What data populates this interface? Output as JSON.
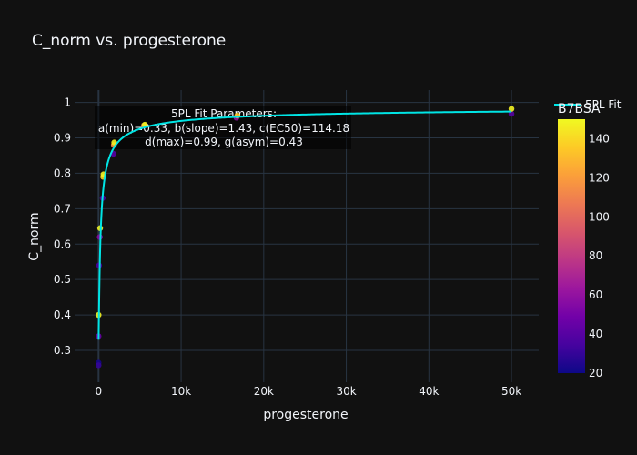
{
  "chart_data": {
    "type": "scatter",
    "title": "C_norm vs. progesterone",
    "xlabel": "progesterone",
    "ylabel": "C_norm",
    "xlim": [
      -2900,
      53300
    ],
    "ylim": [
      0.21,
      1.035
    ],
    "xticks": [
      0,
      10000,
      20000,
      30000,
      40000,
      50000
    ],
    "xtick_labels": [
      "0",
      "10k",
      "20k",
      "30k",
      "40k",
      "50k"
    ],
    "yticks": [
      0.3,
      0.4,
      0.5,
      0.6,
      0.7,
      0.8,
      0.9,
      1
    ],
    "ytick_labels": [
      "0.3",
      "0.4",
      "0.5",
      "0.6",
      "0.7",
      "0.8",
      "0.9",
      "1"
    ],
    "grid": true,
    "points": [
      {
        "x": 0,
        "y": 0.265,
        "c": 22
      },
      {
        "x": 0,
        "y": 0.258,
        "c": 30
      },
      {
        "x": 0,
        "y": 0.34,
        "c": 45
      },
      {
        "x": 0,
        "y": 0.4,
        "c": 148
      },
      {
        "x": 60,
        "y": 0.54,
        "c": 35
      },
      {
        "x": 150,
        "y": 0.62,
        "c": 55
      },
      {
        "x": 190,
        "y": 0.645,
        "c": 148
      },
      {
        "x": 500,
        "y": 0.73,
        "c": 35
      },
      {
        "x": 560,
        "y": 0.79,
        "c": 140
      },
      {
        "x": 600,
        "y": 0.797,
        "c": 148
      },
      {
        "x": 1800,
        "y": 0.855,
        "c": 40
      },
      {
        "x": 1850,
        "y": 0.88,
        "c": 115
      },
      {
        "x": 1900,
        "y": 0.887,
        "c": 148
      },
      {
        "x": 5500,
        "y": 0.935,
        "c": 120
      },
      {
        "x": 5600,
        "y": 0.937,
        "c": 148
      },
      {
        "x": 16700,
        "y": 0.957,
        "c": 60
      },
      {
        "x": 16800,
        "y": 0.963,
        "c": 135
      },
      {
        "x": 50000,
        "y": 0.968,
        "c": 40
      },
      {
        "x": 50000,
        "y": 0.982,
        "c": 148
      }
    ],
    "fit": {
      "name": "5PL Fit",
      "color": "#00e5e5",
      "params": {
        "a": 0.33,
        "b": 1.43,
        "c": 114.18,
        "d": 0.99,
        "g": 0.43
      }
    },
    "annotation": [
      "5PL Fit Parameters:",
      "a(min)=0.33, b(slope)=1.43, c(EC50)=114.18",
      "d(max)=0.99, g(asym)=0.43"
    ],
    "colorbar": {
      "title": "B7BSA",
      "range": [
        20,
        150
      ],
      "ticks": [
        20,
        40,
        60,
        80,
        100,
        120,
        140
      ],
      "ticklabels": [
        "20",
        "40",
        "60",
        "80",
        "100",
        "120",
        "140"
      ],
      "colorscale": [
        "#0d0887",
        "#46039f",
        "#7201a8",
        "#9c179e",
        "#bd3786",
        "#d8576b",
        "#ed7953",
        "#fb9f3a",
        "#fdca26",
        "#f0f921"
      ]
    },
    "legend": {
      "position": "top-right",
      "entries": [
        "5PL Fit"
      ]
    }
  }
}
